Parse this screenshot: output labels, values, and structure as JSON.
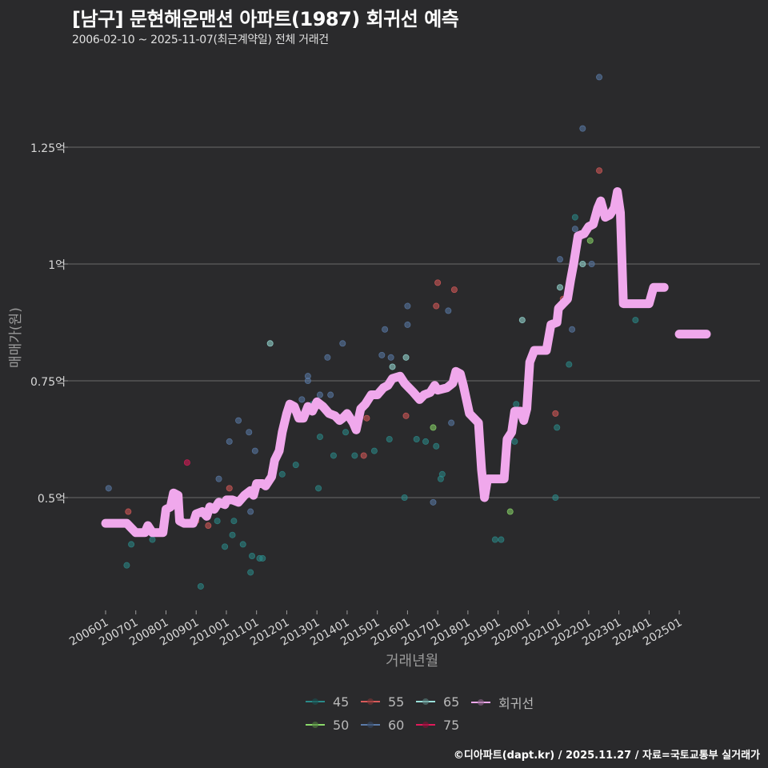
{
  "header": {
    "title": "[남구] 문현해운맨션 아파트(1987) 회귀선 예측",
    "subtitle": "2006-02-10 ~ 2025-11-07(최근계약일) 전체 거래건"
  },
  "caption": "©디아파트(dapt.kr) / 2025.11.27 / 자료=국토교통부 실거래가",
  "colors": {
    "background": "#2a2a2c",
    "grid": "#6a6a6a",
    "regression": "#f0a8ec",
    "s45": "#2a8a8a",
    "s50": "#8ad86a",
    "s55": "#d85a5a",
    "s60": "#5a7aa8",
    "s65": "#9ae0da",
    "s75": "#e01a5a"
  },
  "chart_data": {
    "type": "scatter",
    "title": "[남구] 문현해운맨션 아파트(1987) 회귀선 예측",
    "subtitle": "2006-02-10 ~ 2025-11-07(최근계약일) 전체 거래건",
    "xlabel": "거래년월",
    "ylabel": "매매가(원)",
    "x_ticks": [
      "200601",
      "200701",
      "200801",
      "200901",
      "201001",
      "201101",
      "201201",
      "201301",
      "201401",
      "201501",
      "201601",
      "201701",
      "201801",
      "201901",
      "202001",
      "202101",
      "202201",
      "202301",
      "202401",
      "202501"
    ],
    "y_ticks": [
      {
        "label": "0.5억",
        "value": 0.5
      },
      {
        "label": "0.75억",
        "value": 0.75
      },
      {
        "label": "1억",
        "value": 1.0
      },
      {
        "label": "1.25억",
        "value": 1.25
      }
    ],
    "ylim": [
      0.26,
      1.48
    ],
    "grid": true,
    "legend_position": "bottom",
    "legend": [
      {
        "key": "45",
        "label": "45",
        "color": "#2a8a8a"
      },
      {
        "key": "55",
        "label": "55",
        "color": "#d85a5a"
      },
      {
        "key": "65",
        "label": "65",
        "color": "#9ae0da"
      },
      {
        "key": "reg",
        "label": "회귀선",
        "color": "#f0a8ec"
      },
      {
        "key": "50",
        "label": "50",
        "color": "#8ad86a"
      },
      {
        "key": "60",
        "label": "60",
        "color": "#5a7aa8"
      },
      {
        "key": "75",
        "label": "75",
        "color": "#e01a5a"
      }
    ],
    "regression_line": [
      [
        2006.0,
        0.445
      ],
      [
        2006.7,
        0.445
      ],
      [
        2006.85,
        0.435
      ],
      [
        2007.0,
        0.425
      ],
      [
        2007.3,
        0.425
      ],
      [
        2007.4,
        0.44
      ],
      [
        2007.55,
        0.425
      ],
      [
        2007.9,
        0.425
      ],
      [
        2008.0,
        0.475
      ],
      [
        2008.15,
        0.48
      ],
      [
        2008.25,
        0.51
      ],
      [
        2008.4,
        0.505
      ],
      [
        2008.45,
        0.45
      ],
      [
        2008.6,
        0.445
      ],
      [
        2008.9,
        0.445
      ],
      [
        2009.0,
        0.465
      ],
      [
        2009.2,
        0.47
      ],
      [
        2009.35,
        0.46
      ],
      [
        2009.45,
        0.48
      ],
      [
        2009.6,
        0.475
      ],
      [
        2009.75,
        0.49
      ],
      [
        2009.95,
        0.485
      ],
      [
        2010.0,
        0.495
      ],
      [
        2010.2,
        0.495
      ],
      [
        2010.4,
        0.49
      ],
      [
        2010.6,
        0.505
      ],
      [
        2010.8,
        0.515
      ],
      [
        2010.9,
        0.505
      ],
      [
        2011.0,
        0.53
      ],
      [
        2011.2,
        0.53
      ],
      [
        2011.3,
        0.525
      ],
      [
        2011.5,
        0.545
      ],
      [
        2011.6,
        0.58
      ],
      [
        2011.75,
        0.6
      ],
      [
        2011.85,
        0.64
      ],
      [
        2012.0,
        0.68
      ],
      [
        2012.1,
        0.7
      ],
      [
        2012.25,
        0.695
      ],
      [
        2012.4,
        0.67
      ],
      [
        2012.55,
        0.67
      ],
      [
        2012.7,
        0.695
      ],
      [
        2012.85,
        0.685
      ],
      [
        2013.0,
        0.705
      ],
      [
        2013.2,
        0.695
      ],
      [
        2013.4,
        0.68
      ],
      [
        2013.6,
        0.675
      ],
      [
        2013.75,
        0.665
      ],
      [
        2013.85,
        0.67
      ],
      [
        2014.0,
        0.68
      ],
      [
        2014.2,
        0.66
      ],
      [
        2014.3,
        0.645
      ],
      [
        2014.45,
        0.69
      ],
      [
        2014.6,
        0.7
      ],
      [
        2014.8,
        0.72
      ],
      [
        2015.0,
        0.72
      ],
      [
        2015.2,
        0.735
      ],
      [
        2015.35,
        0.74
      ],
      [
        2015.5,
        0.755
      ],
      [
        2015.75,
        0.76
      ],
      [
        2015.9,
        0.745
      ],
      [
        2016.05,
        0.735
      ],
      [
        2016.2,
        0.725
      ],
      [
        2016.4,
        0.71
      ],
      [
        2016.55,
        0.72
      ],
      [
        2016.75,
        0.725
      ],
      [
        2016.9,
        0.74
      ],
      [
        2017.0,
        0.73
      ],
      [
        2017.3,
        0.735
      ],
      [
        2017.5,
        0.745
      ],
      [
        2017.6,
        0.77
      ],
      [
        2017.75,
        0.765
      ],
      [
        2017.85,
        0.74
      ],
      [
        2017.95,
        0.71
      ],
      [
        2018.05,
        0.68
      ],
      [
        2018.2,
        0.67
      ],
      [
        2018.35,
        0.66
      ],
      [
        2018.45,
        0.56
      ],
      [
        2018.55,
        0.5
      ],
      [
        2018.65,
        0.54
      ],
      [
        2019.2,
        0.54
      ],
      [
        2019.3,
        0.625
      ],
      [
        2019.45,
        0.64
      ],
      [
        2019.55,
        0.685
      ],
      [
        2019.75,
        0.685
      ],
      [
        2019.85,
        0.665
      ],
      [
        2019.95,
        0.69
      ],
      [
        2020.05,
        0.79
      ],
      [
        2020.2,
        0.815
      ],
      [
        2020.6,
        0.815
      ],
      [
        2020.75,
        0.87
      ],
      [
        2020.95,
        0.875
      ],
      [
        2021.0,
        0.905
      ],
      [
        2021.15,
        0.915
      ],
      [
        2021.3,
        0.925
      ],
      [
        2021.4,
        0.965
      ],
      [
        2021.5,
        1.0
      ],
      [
        2021.65,
        1.06
      ],
      [
        2021.85,
        1.065
      ],
      [
        2022.0,
        1.08
      ],
      [
        2022.15,
        1.085
      ],
      [
        2022.3,
        1.12
      ],
      [
        2022.4,
        1.135
      ],
      [
        2022.55,
        1.1
      ],
      [
        2022.7,
        1.105
      ],
      [
        2022.85,
        1.12
      ],
      [
        2022.95,
        1.155
      ],
      [
        2023.05,
        1.11
      ],
      [
        2023.15,
        0.915
      ],
      [
        2024.0,
        0.915
      ],
      [
        2024.15,
        0.95
      ],
      [
        2024.5,
        0.95
      ]
    ],
    "regression_forecast": [
      [
        2025.0,
        0.85
      ],
      [
        2025.9,
        0.85
      ]
    ],
    "points": [
      {
        "s": "60",
        "x": 2006.1,
        "y": 0.52
      },
      {
        "s": "55",
        "x": 2006.75,
        "y": 0.47
      },
      {
        "s": "45",
        "x": 2006.7,
        "y": 0.355
      },
      {
        "s": "45",
        "x": 2006.85,
        "y": 0.4
      },
      {
        "s": "45",
        "x": 2007.55,
        "y": 0.41
      },
      {
        "s": "75",
        "x": 2008.7,
        "y": 0.575
      },
      {
        "s": "55",
        "x": 2009.0,
        "y": 0.45
      },
      {
        "s": "45",
        "x": 2009.15,
        "y": 0.31
      },
      {
        "s": "55",
        "x": 2009.4,
        "y": 0.44
      },
      {
        "s": "60",
        "x": 2009.75,
        "y": 0.54
      },
      {
        "s": "45",
        "x": 2009.7,
        "y": 0.45
      },
      {
        "s": "45",
        "x": 2009.95,
        "y": 0.395
      },
      {
        "s": "60",
        "x": 2010.1,
        "y": 0.62
      },
      {
        "s": "55",
        "x": 2010.1,
        "y": 0.52
      },
      {
        "s": "45",
        "x": 2010.2,
        "y": 0.42
      },
      {
        "s": "45",
        "x": 2010.25,
        "y": 0.45
      },
      {
        "s": "60",
        "x": 2010.4,
        "y": 0.665
      },
      {
        "s": "45",
        "x": 2010.55,
        "y": 0.4
      },
      {
        "s": "60",
        "x": 2010.75,
        "y": 0.64
      },
      {
        "s": "60",
        "x": 2010.8,
        "y": 0.47
      },
      {
        "s": "45",
        "x": 2010.8,
        "y": 0.34
      },
      {
        "s": "45",
        "x": 2010.85,
        "y": 0.375
      },
      {
        "s": "60",
        "x": 2010.95,
        "y": 0.6
      },
      {
        "s": "45",
        "x": 2011.1,
        "y": 0.37
      },
      {
        "s": "45",
        "x": 2011.2,
        "y": 0.37
      },
      {
        "s": "65",
        "x": 2011.45,
        "y": 0.83
      },
      {
        "s": "45",
        "x": 2011.85,
        "y": 0.55
      },
      {
        "s": "45",
        "x": 2011.95,
        "y": 0.67
      },
      {
        "s": "45",
        "x": 2012.3,
        "y": 0.57
      },
      {
        "s": "60",
        "x": 2012.5,
        "y": 0.71
      },
      {
        "s": "60",
        "x": 2012.7,
        "y": 0.76
      },
      {
        "s": "60",
        "x": 2012.7,
        "y": 0.75
      },
      {
        "s": "45",
        "x": 2012.85,
        "y": 0.7
      },
      {
        "s": "60",
        "x": 2013.1,
        "y": 0.72
      },
      {
        "s": "45",
        "x": 2013.1,
        "y": 0.63
      },
      {
        "s": "45",
        "x": 2013.05,
        "y": 0.52
      },
      {
        "s": "60",
        "x": 2013.35,
        "y": 0.8
      },
      {
        "s": "60",
        "x": 2013.45,
        "y": 0.72
      },
      {
        "s": "45",
        "x": 2013.55,
        "y": 0.59
      },
      {
        "s": "60",
        "x": 2013.85,
        "y": 0.83
      },
      {
        "s": "45",
        "x": 2013.95,
        "y": 0.64
      },
      {
        "s": "45",
        "x": 2014.25,
        "y": 0.59
      },
      {
        "s": "55",
        "x": 2014.65,
        "y": 0.67
      },
      {
        "s": "55",
        "x": 2014.55,
        "y": 0.59
      },
      {
        "s": "45",
        "x": 2014.9,
        "y": 0.6
      },
      {
        "s": "60",
        "x": 2015.15,
        "y": 0.805
      },
      {
        "s": "60",
        "x": 2015.25,
        "y": 0.86
      },
      {
        "s": "45",
        "x": 2015.4,
        "y": 0.625
      },
      {
        "s": "60",
        "x": 2015.45,
        "y": 0.8
      },
      {
        "s": "65",
        "x": 2015.5,
        "y": 0.78
      },
      {
        "s": "45",
        "x": 2015.9,
        "y": 0.5
      },
      {
        "s": "60",
        "x": 2016.0,
        "y": 0.91
      },
      {
        "s": "60",
        "x": 2016.0,
        "y": 0.87
      },
      {
        "s": "65",
        "x": 2015.95,
        "y": 0.8
      },
      {
        "s": "55",
        "x": 2015.95,
        "y": 0.675
      },
      {
        "s": "45",
        "x": 2016.3,
        "y": 0.625
      },
      {
        "s": "45",
        "x": 2016.6,
        "y": 0.62
      },
      {
        "s": "55",
        "x": 2016.95,
        "y": 0.91
      },
      {
        "s": "55",
        "x": 2017.0,
        "y": 0.96
      },
      {
        "s": "50",
        "x": 2016.85,
        "y": 0.65
      },
      {
        "s": "45",
        "x": 2016.95,
        "y": 0.61
      },
      {
        "s": "60",
        "x": 2016.85,
        "y": 0.49
      },
      {
        "s": "45",
        "x": 2017.1,
        "y": 0.54
      },
      {
        "s": "45",
        "x": 2017.15,
        "y": 0.55
      },
      {
        "s": "60",
        "x": 2017.35,
        "y": 0.9
      },
      {
        "s": "55",
        "x": 2017.55,
        "y": 0.945
      },
      {
        "s": "60",
        "x": 2017.45,
        "y": 0.66
      },
      {
        "s": "45",
        "x": 2017.7,
        "y": 0.76
      },
      {
        "s": "45",
        "x": 2018.9,
        "y": 0.41
      },
      {
        "s": "45",
        "x": 2019.1,
        "y": 0.41
      },
      {
        "s": "50",
        "x": 2019.4,
        "y": 0.47
      },
      {
        "s": "45",
        "x": 2019.55,
        "y": 0.62
      },
      {
        "s": "45",
        "x": 2019.6,
        "y": 0.7
      },
      {
        "s": "65",
        "x": 2019.8,
        "y": 0.88
      },
      {
        "s": "55",
        "x": 2020.9,
        "y": 0.68
      },
      {
        "s": "45",
        "x": 2020.95,
        "y": 0.65
      },
      {
        "s": "45",
        "x": 2020.9,
        "y": 0.5
      },
      {
        "s": "65",
        "x": 2021.05,
        "y": 0.95
      },
      {
        "s": "55",
        "x": 2021.15,
        "y": 0.925
      },
      {
        "s": "60",
        "x": 2021.45,
        "y": 0.86
      },
      {
        "s": "45",
        "x": 2021.35,
        "y": 0.785
      },
      {
        "s": "60",
        "x": 2021.05,
        "y": 1.01
      },
      {
        "s": "45",
        "x": 2021.55,
        "y": 1.1
      },
      {
        "s": "60",
        "x": 2021.8,
        "y": 1.29
      },
      {
        "s": "60",
        "x": 2021.55,
        "y": 1.075
      },
      {
        "s": "65",
        "x": 2021.8,
        "y": 1.0
      },
      {
        "s": "50",
        "x": 2022.05,
        "y": 1.05
      },
      {
        "s": "60",
        "x": 2022.1,
        "y": 1.0
      },
      {
        "s": "55",
        "x": 2022.35,
        "y": 1.2
      },
      {
        "s": "60",
        "x": 2022.35,
        "y": 1.4
      },
      {
        "s": "45",
        "x": 2023.55,
        "y": 0.88
      },
      {
        "s": "55",
        "x": 2024.4,
        "y": 0.95
      }
    ]
  }
}
